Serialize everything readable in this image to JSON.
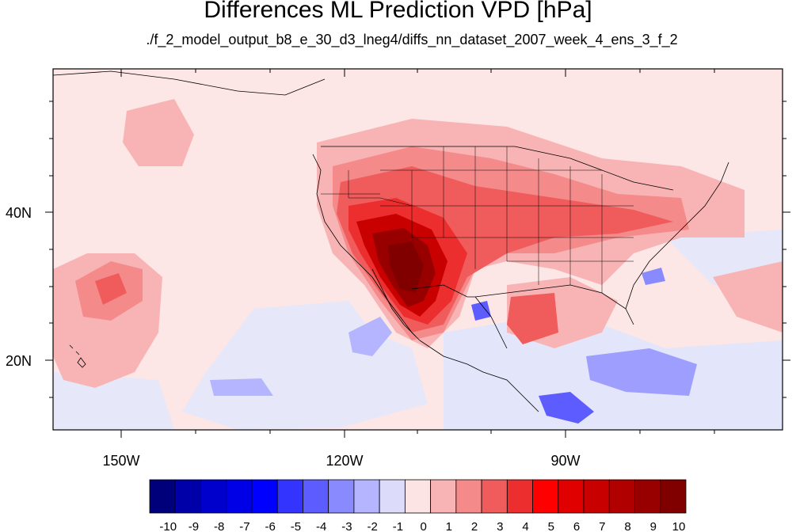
{
  "title": "Differences ML Prediction VPD [hPa]",
  "subtitle": "./f_2_model_output_b8_e_30_d3_lneg4/diffs_nn_dataset_2007_week_4_ens_3_f_2",
  "map": {
    "lon_labels": [
      "150W",
      "120W",
      "90W"
    ],
    "lat_labels": [
      "40N",
      "20N"
    ]
  },
  "colorbar": {
    "labels": [
      "-10",
      "-9",
      "-8",
      "-7",
      "-6",
      "-5",
      "-4",
      "-3",
      "-2",
      "-1",
      "0",
      "1",
      "2",
      "3",
      "4",
      "5",
      "6",
      "7",
      "8",
      "9",
      "10"
    ],
    "colors": [
      "#00007a",
      "#0000a8",
      "#0000cc",
      "#0000e6",
      "#0000ff",
      "#3434ff",
      "#5c5cff",
      "#8a8aff",
      "#b4b4ff",
      "#dcdcfa",
      "#fce4e4",
      "#f8b4b4",
      "#f48a8a",
      "#f05c5c",
      "#ec2e2e",
      "#ff0000",
      "#e00000",
      "#c80000",
      "#b00000",
      "#980000",
      "#800000"
    ]
  }
}
